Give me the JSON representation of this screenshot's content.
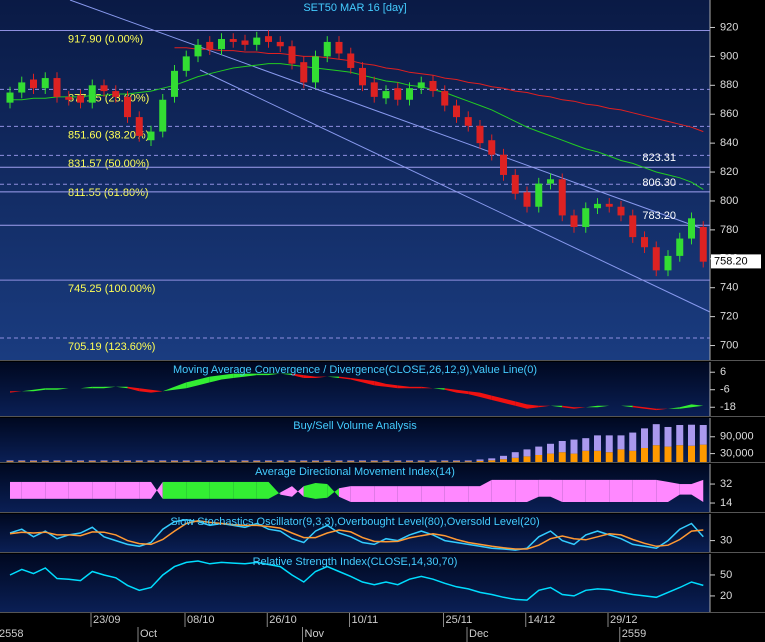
{
  "chart_data": [
    {
      "type": "candlestick",
      "title": "SET50 MAR 16  [day]",
      "categories": [
        null,
        null,
        null,
        null,
        null,
        null,
        null,
        null,
        "23/09",
        null,
        null,
        null,
        null,
        null,
        null,
        null,
        "08/10",
        null,
        null,
        null,
        null,
        null,
        null,
        "26/10",
        null,
        null,
        null,
        null,
        null,
        null,
        "10/11",
        null,
        null,
        null,
        null,
        null,
        null,
        null,
        "25/11",
        null,
        null,
        null,
        null,
        null,
        null,
        "14/12",
        null,
        null,
        null,
        null,
        null,
        null,
        "29/12",
        null,
        null,
        null,
        null,
        null,
        null,
        null
      ],
      "periods": [
        "2558",
        null,
        null,
        null,
        null,
        null,
        null,
        null,
        null,
        null,
        null,
        null,
        "Oct",
        null,
        null,
        null,
        null,
        null,
        null,
        null,
        null,
        null,
        null,
        null,
        null,
        null,
        "Nov",
        null,
        null,
        null,
        null,
        null,
        null,
        null,
        null,
        null,
        null,
        null,
        null,
        null,
        "Dec",
        null,
        null,
        null,
        null,
        null,
        null,
        null,
        null,
        null,
        null,
        null,
        null,
        "2559",
        null,
        null,
        null,
        null,
        null,
        null
      ],
      "open": [
        868,
        875,
        884,
        878,
        885,
        872,
        873,
        868,
        880,
        876,
        872,
        858,
        842,
        848,
        872,
        890,
        900,
        910,
        905,
        912,
        911,
        908,
        914,
        910,
        907,
        896,
        882,
        900,
        910,
        902,
        892,
        882,
        871,
        878,
        870,
        878,
        883,
        876,
        866,
        858,
        852,
        842,
        832,
        818,
        806,
        796,
        812,
        815,
        790,
        782,
        795,
        798,
        796,
        790,
        775,
        768,
        752,
        762,
        774,
        782
      ],
      "high": [
        879,
        886,
        888,
        889,
        889,
        876,
        877,
        884,
        884,
        880,
        876,
        862,
        852,
        874,
        894,
        904,
        912,
        914,
        916,
        916,
        915,
        917,
        918,
        914,
        911,
        900,
        904,
        914,
        914,
        906,
        896,
        886,
        880,
        882,
        882,
        886,
        887,
        880,
        870,
        862,
        856,
        846,
        836,
        822,
        810,
        816,
        819,
        819,
        794,
        799,
        802,
        802,
        800,
        794,
        779,
        772,
        766,
        778,
        792,
        786
      ],
      "low": [
        864,
        871,
        874,
        874,
        868,
        866,
        864,
        864,
        872,
        868,
        854,
        841,
        838,
        844,
        868,
        886,
        896,
        901,
        901,
        906,
        904,
        904,
        906,
        903,
        891,
        878,
        878,
        896,
        898,
        888,
        876,
        868,
        867,
        866,
        866,
        874,
        872,
        862,
        854,
        848,
        836,
        828,
        814,
        801,
        792,
        792,
        808,
        786,
        778,
        778,
        791,
        792,
        786,
        771,
        764,
        748,
        748,
        758,
        770,
        754
      ],
      "close": [
        875,
        882,
        878,
        885,
        872,
        870,
        868,
        880,
        876,
        872,
        858,
        845,
        848,
        870,
        890,
        900,
        908,
        905,
        912,
        910,
        908,
        913,
        910,
        907,
        895,
        882,
        900,
        910,
        902,
        892,
        880,
        872,
        876,
        870,
        878,
        882,
        876,
        866,
        858,
        852,
        840,
        832,
        818,
        805,
        796,
        812,
        815,
        790,
        782,
        795,
        798,
        796,
        790,
        775,
        768,
        752,
        762,
        774,
        788,
        758
      ],
      "up_color": "#33dd33",
      "down_color": "#dd2222",
      "lines": [
        {
          "color": "#e02020",
          "values": [
            null,
            null,
            null,
            null,
            null,
            null,
            null,
            null,
            null,
            null,
            null,
            null,
            null,
            null,
            906,
            906,
            905,
            905,
            904,
            904,
            903,
            903,
            902,
            902,
            901,
            900,
            900,
            899,
            898,
            897,
            895,
            894,
            892,
            891,
            889,
            888,
            887,
            885,
            884,
            882,
            881,
            879,
            878,
            876,
            875,
            873,
            872,
            870,
            869,
            867,
            866,
            864,
            863,
            861,
            859,
            857,
            855,
            853,
            851,
            848
          ]
        },
        {
          "color": "#22cc22",
          "values": [
            870,
            870,
            871,
            871,
            872,
            872,
            872,
            873,
            873,
            874,
            874,
            875,
            876,
            878,
            880,
            883,
            886,
            888,
            890,
            892,
            893,
            894,
            895,
            895,
            894,
            893,
            892,
            891,
            890,
            889,
            887,
            885,
            883,
            882,
            880,
            879,
            877,
            875,
            872,
            869,
            866,
            863,
            859,
            855,
            851,
            848,
            845,
            842,
            839,
            836,
            834,
            831,
            828,
            826,
            823,
            820,
            818,
            816,
            813,
            808
          ]
        }
      ],
      "fib_levels": [
        {
          "value": 917.9,
          "label": "917.90 (0.00%)",
          "dashed": false
        },
        {
          "value": 877.15,
          "label": "877.15 (23.60%)",
          "dashed": true
        },
        {
          "value": 851.6,
          "label": "851.60 (38.20%)",
          "dashed": true
        },
        {
          "value": 831.57,
          "label": "831.57 (50.00%)",
          "dashed": true
        },
        {
          "value": 811.55,
          "label": "811.55 (61.80%)",
          "dashed": true
        },
        {
          "value": 745.25,
          "label": "745.25 (100.00%)",
          "dashed": false
        },
        {
          "value": 705.19,
          "label": "705.19 (123.60%)",
          "dashed": true
        }
      ],
      "price_levels": [
        {
          "value": 823.31,
          "label": "823.31"
        },
        {
          "value": 806.3,
          "label": "806.30"
        },
        {
          "value": 783.2,
          "label": "783.20"
        }
      ],
      "last_price": {
        "value": 758.2,
        "label": "758.20"
      },
      "ylim": [
        690,
        939
      ],
      "yticks": [
        700,
        720,
        740,
        760,
        780,
        800,
        820,
        840,
        860,
        880,
        900,
        920
      ]
    },
    {
      "type": "band",
      "title": "Moving Average Convergence / Divergence(CLOSE,26,12,9),Value Line(0)",
      "fill_colors": [
        "#33ee33",
        "#ee1111"
      ],
      "series": [
        {
          "values": [
            -8,
            -7,
            -6,
            -5,
            -5,
            -5,
            -5,
            -4,
            -4,
            -4,
            -5,
            -7,
            -8,
            -7,
            -4,
            -1,
            1,
            3,
            4,
            5,
            5,
            5,
            5,
            5,
            4,
            2,
            2,
            3,
            2,
            1,
            -1,
            -3,
            -4,
            -5,
            -5,
            -5,
            -5,
            -6,
            -8,
            -9,
            -11,
            -13,
            -15,
            -17,
            -19,
            -18,
            -17,
            -18,
            -19,
            -18,
            -17,
            -17,
            -17,
            -18,
            -19,
            -20,
            -19,
            -18,
            -16,
            -17
          ]
        },
        {
          "values": [
            -7,
            -7,
            -7,
            -6,
            -6,
            -5,
            -5,
            -5,
            -5,
            -4,
            -4,
            -5,
            -6,
            -7,
            -6,
            -5,
            -3,
            -1,
            1,
            2,
            3,
            4,
            4,
            5,
            5,
            4,
            3,
            3,
            3,
            2,
            1,
            0,
            -2,
            -3,
            -4,
            -4,
            -5,
            -5,
            -6,
            -7,
            -8,
            -10,
            -12,
            -14,
            -16,
            -17,
            -17,
            -17,
            -18,
            -18,
            -18,
            -17,
            -17,
            -17,
            -18,
            -19,
            -19,
            -19,
            -18,
            -17
          ]
        }
      ],
      "ylim": [
        -24,
        13
      ],
      "yticks": [
        6,
        -6,
        -18
      ]
    },
    {
      "type": "stacked_bar",
      "title": "Buy/Sell Volume Analysis",
      "series": [
        {
          "color": "#ff9900",
          "values": [
            2500,
            2500,
            2500,
            2500,
            2500,
            2500,
            2500,
            2500,
            2500,
            2500,
            2500,
            2500,
            2500,
            2500,
            2500,
            2500,
            2500,
            2500,
            2500,
            2500,
            2500,
            2500,
            2500,
            2500,
            2500,
            2500,
            2500,
            2500,
            2500,
            2500,
            2500,
            2500,
            2500,
            2500,
            2500,
            2500,
            2500,
            2500,
            2500,
            2500,
            4000,
            6000,
            10000,
            15000,
            20000,
            25000,
            30000,
            35000,
            30000,
            40000,
            40000,
            35000,
            45000,
            40000,
            50000,
            60000,
            55000,
            60000,
            58000,
            62000
          ]
        },
        {
          "color": "#aa99ee",
          "values": [
            3000,
            3000,
            3000,
            3000,
            3000,
            3000,
            3000,
            3000,
            3000,
            3000,
            3000,
            3000,
            3000,
            3000,
            3000,
            3000,
            3000,
            3000,
            3000,
            3000,
            3000,
            3000,
            3000,
            3000,
            3000,
            3000,
            3000,
            3000,
            3000,
            3000,
            3000,
            3000,
            3000,
            3000,
            3000,
            3000,
            3000,
            3000,
            3000,
            3000,
            5000,
            7000,
            12000,
            20000,
            25000,
            30000,
            35000,
            40000,
            50000,
            45000,
            55000,
            60000,
            50000,
            65000,
            70000,
            75000,
            70000,
            72000,
            75000,
            70000
          ]
        }
      ],
      "ylim": [
        0,
        157000
      ],
      "yticks": [
        {
          "value": 90000,
          "label": "90,000"
        },
        {
          "value": 30000,
          "label": "30,000"
        }
      ]
    },
    {
      "type": "band",
      "title": "Average Directional Movement Index(14)",
      "fill_colors": [
        "#33ee33",
        "#ff88ff"
      ],
      "series": [
        {
          "values": [
            18,
            18,
            18,
            18,
            18,
            18,
            18,
            18,
            18,
            18,
            18,
            18,
            18,
            34,
            34,
            34,
            34,
            34,
            34,
            34,
            34,
            34,
            34,
            22,
            20,
            30,
            33,
            32,
            20,
            15,
            15,
            15,
            15,
            15,
            15,
            15,
            15,
            15,
            15,
            15,
            15,
            15,
            15,
            15,
            15,
            20,
            20,
            15,
            15,
            15,
            15,
            15,
            15,
            15,
            15,
            15,
            15,
            22,
            22,
            15
          ]
        },
        {
          "values": [
            34,
            34,
            34,
            34,
            34,
            34,
            34,
            34,
            34,
            34,
            34,
            34,
            34,
            18,
            18,
            18,
            18,
            18,
            18,
            18,
            18,
            18,
            18,
            24,
            30,
            20,
            18,
            19,
            28,
            30,
            30,
            30,
            30,
            30,
            30,
            30,
            30,
            30,
            30,
            30,
            30,
            36,
            36,
            36,
            36,
            36,
            36,
            36,
            36,
            36,
            36,
            36,
            36,
            36,
            36,
            36,
            34,
            32,
            32,
            36
          ]
        }
      ],
      "ylim": [
        5.5,
        51
      ],
      "yticks": [
        32,
        14
      ]
    },
    {
      "type": "line",
      "title": "Slow Stochastics Oscillator(9,3,3),Overbought Level(80),Oversold Level(20)",
      "series": [
        {
          "color": "#33ccff",
          "values": [
            50,
            60,
            40,
            55,
            35,
            45,
            50,
            65,
            40,
            30,
            20,
            15,
            25,
            60,
            80,
            85,
            80,
            70,
            75,
            70,
            65,
            75,
            60,
            55,
            35,
            25,
            55,
            70,
            50,
            40,
            25,
            20,
            35,
            30,
            45,
            55,
            45,
            30,
            25,
            20,
            15,
            10,
            8,
            5,
            10,
            40,
            55,
            30,
            20,
            45,
            55,
            45,
            35,
            20,
            15,
            10,
            30,
            60,
            75,
            40
          ]
        },
        {
          "color": "#ff9933",
          "values": [
            48,
            52,
            50,
            52,
            45,
            45,
            43,
            53,
            52,
            45,
            30,
            22,
            20,
            33,
            55,
            75,
            82,
            78,
            75,
            72,
            70,
            70,
            67,
            63,
            50,
            38,
            38,
            50,
            58,
            53,
            38,
            28,
            27,
            28,
            37,
            43,
            48,
            43,
            33,
            25,
            20,
            15,
            11,
            8,
            8,
            18,
            35,
            42,
            35,
            32,
            40,
            48,
            45,
            33,
            23,
            15,
            18,
            33,
            55,
            58
          ]
        }
      ],
      "ylim": [
        0,
        100
      ],
      "yticks": [
        30
      ]
    },
    {
      "type": "line",
      "title": "Relative Strength Index(CLOSE,14,30,70)",
      "series": [
        {
          "color": "#00ddff",
          "values": [
            50,
            58,
            52,
            60,
            45,
            44,
            42,
            55,
            50,
            46,
            35,
            28,
            32,
            50,
            62,
            68,
            70,
            66,
            68,
            67,
            66,
            68,
            65,
            62,
            50,
            40,
            55,
            62,
            55,
            48,
            40,
            36,
            40,
            36,
            44,
            48,
            44,
            38,
            33,
            30,
            25,
            22,
            18,
            15,
            14,
            28,
            32,
            22,
            20,
            28,
            30,
            29,
            25,
            22,
            20,
            18,
            25,
            32,
            40,
            35
          ]
        }
      ],
      "ylim": [
        -3,
        80
      ],
      "yticks": [
        50,
        20
      ]
    }
  ]
}
